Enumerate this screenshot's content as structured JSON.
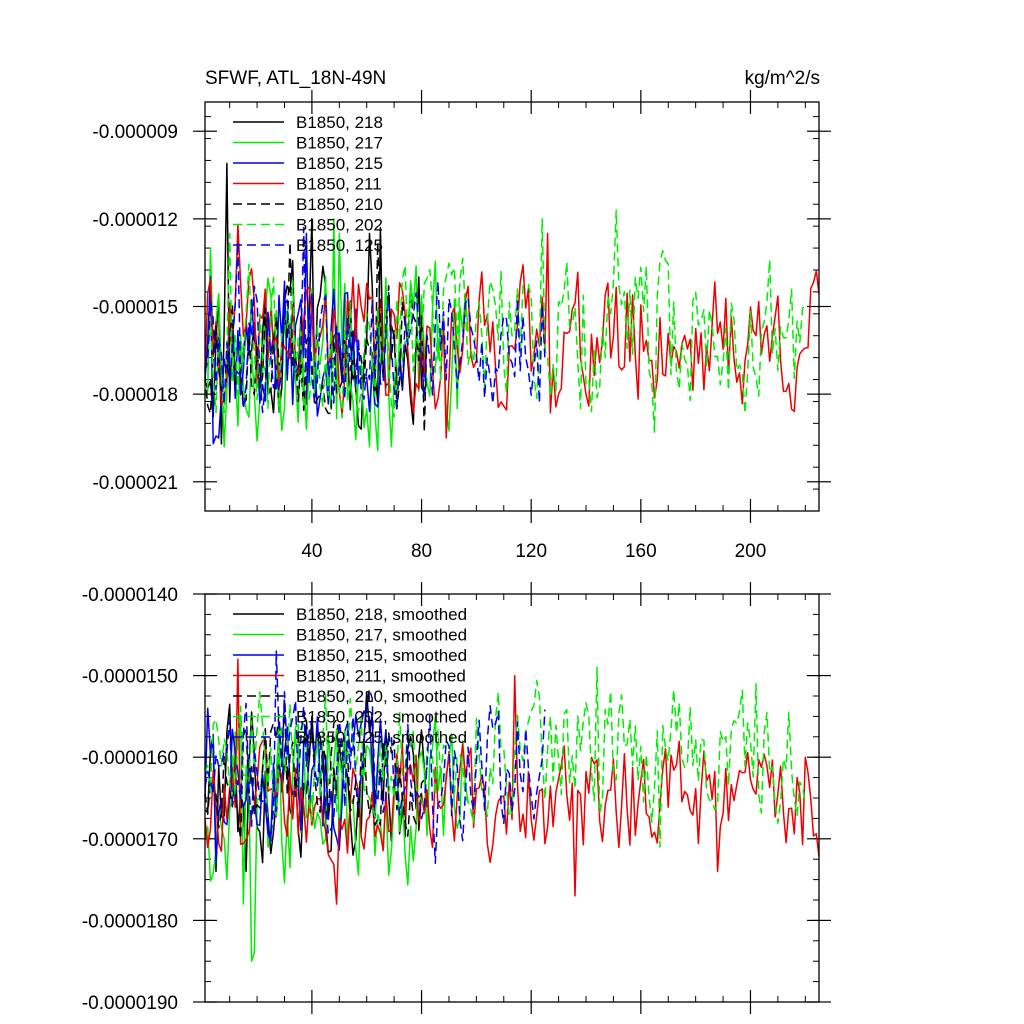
{
  "colors": {
    "black": "#000000",
    "green": "#00ee00",
    "blue": "#0000ee",
    "red": "#ee0000"
  },
  "chart_data": [
    {
      "type": "line",
      "title_left": "SFWF, ATL_18N-49N",
      "title_right": "kg/m^2/s",
      "xlabel": "",
      "ylabel": "",
      "xlim": [
        1,
        225
      ],
      "ylim": [
        -2.2e-05,
        -8e-06
      ],
      "x_ticks": [
        40,
        80,
        120,
        160,
        200
      ],
      "x_tick_labels": [
        "40",
        "80",
        "120",
        "160",
        "200"
      ],
      "y_ticks": [
        -9e-06,
        -1.2e-05,
        -1.5e-05,
        -1.8e-05,
        -2.1e-05
      ],
      "y_tick_labels": [
        "-0.000009",
        "-0.000012",
        "-0.000015",
        "-0.000018",
        "-0.000021"
      ],
      "grid": false,
      "legend_position": "top-left",
      "series": [
        {
          "name": "B1850, 218",
          "color": "black",
          "dash": "solid",
          "length": 82,
          "base": -1.63e-05,
          "amp": 2.4e-06,
          "seed": 11,
          "spikes": [
            [
              9,
              -1.01e-05
            ],
            [
              7,
              -1.97e-05
            ],
            [
              40,
              -1.2e-05
            ],
            [
              61,
              -1.25e-05
            ],
            [
              65,
              -1.23e-05
            ],
            [
              58,
              -1.92e-05
            ]
          ]
        },
        {
          "name": "B1850, 217",
          "color": "green",
          "dash": "solid",
          "length": 97,
          "base": -1.67e-05,
          "amp": 2.7e-06,
          "seed": 23,
          "spikes": [
            [
              8,
              -1.98e-05
            ],
            [
              20,
              -1.96e-05
            ],
            [
              48,
              -1.2e-05
            ],
            [
              50,
              -1.25e-05
            ],
            [
              3,
              -1.3e-05
            ]
          ]
        },
        {
          "name": "B1850, 215",
          "color": "blue",
          "dash": "solid",
          "length": 67,
          "base": -1.64e-05,
          "amp": 2.3e-06,
          "seed": 37,
          "spikes": [
            [
              4,
              -1.97e-05
            ],
            [
              6,
              -1.95e-05
            ],
            [
              38,
              -1.25e-05
            ],
            [
              3,
              -1.4e-05
            ]
          ]
        },
        {
          "name": "B1850, 211",
          "color": "red",
          "dash": "solid",
          "length": 225,
          "base": -1.62e-05,
          "amp": 2e-06,
          "seed": 41,
          "spikes": [
            [
              89,
              -1.95e-05
            ],
            [
              13,
              -1.22e-05
            ],
            [
              126,
              -1.25e-05
            ],
            [
              55,
              -1.4e-05
            ]
          ]
        },
        {
          "name": "B1850, 210",
          "color": "black",
          "dash": "dashed",
          "length": 82,
          "base": -1.64e-05,
          "amp": 2e-06,
          "seed": 53,
          "spikes": [
            [
              81,
              -1.93e-05
            ],
            [
              32,
              -1.28e-05
            ],
            [
              64,
              -1.28e-05
            ],
            [
              71,
              -1.85e-05
            ]
          ]
        },
        {
          "name": "B1850, 202",
          "color": "green",
          "dash": "dashed",
          "length": 220,
          "base": -1.6e-05,
          "amp": 2.3e-06,
          "seed": 67,
          "spikes": [
            [
              151,
              -1.17e-05
            ],
            [
              165,
              -1.93e-05
            ],
            [
              124,
              -1.2e-05
            ],
            [
              10,
              -1.25e-05
            ]
          ]
        },
        {
          "name": "B1850, 125",
          "color": "blue",
          "dash": "dashed",
          "length": 125,
          "base": -1.63e-05,
          "amp": 2e-06,
          "seed": 79,
          "spikes": [
            [
              37,
              -1.23e-05
            ],
            [
              13,
              -1.28e-05
            ],
            [
              123,
              -1.83e-05
            ]
          ]
        }
      ]
    },
    {
      "type": "line",
      "title_left": "",
      "title_right": "",
      "xlabel": "",
      "ylabel": "",
      "xlim": [
        1,
        225
      ],
      "ylim": [
        -1.9e-05,
        -1.4e-05
      ],
      "x_ticks": [
        40,
        80,
        120,
        160,
        200
      ],
      "x_tick_labels": [],
      "y_ticks": [
        -1.4e-05,
        -1.5e-05,
        -1.6e-05,
        -1.7e-05,
        -1.8e-05,
        -1.9e-05
      ],
      "y_tick_labels": [
        "-0.0000140",
        "-0.0000150",
        "-0.0000160",
        "-0.0000170",
        "-0.0000180",
        "-0.0000190"
      ],
      "grid": false,
      "legend_position": "top-left",
      "series": [
        {
          "name": "B1850, 218, smoothed",
          "color": "black",
          "dash": "solid",
          "length": 82,
          "base": -1.63e-05,
          "amp": 8e-07,
          "seed": 111,
          "spikes": [
            [
              5,
              -1.74e-05
            ],
            [
              16,
              -1.74e-05
            ],
            [
              40,
              -1.55e-05
            ],
            [
              60,
              -1.52e-05
            ]
          ]
        },
        {
          "name": "B1850, 217, smoothed",
          "color": "green",
          "dash": "solid",
          "length": 97,
          "base": -1.66e-05,
          "amp": 9e-07,
          "seed": 123,
          "spikes": [
            [
              18,
              -1.85e-05
            ],
            [
              19,
              -1.84e-05
            ],
            [
              15,
              -1.78e-05
            ],
            [
              46,
              -1.57e-05
            ]
          ]
        },
        {
          "name": "B1850, 215, smoothed",
          "color": "blue",
          "dash": "solid",
          "length": 67,
          "base": -1.62e-05,
          "amp": 7e-07,
          "seed": 137,
          "spikes": [
            [
              5,
              -1.73e-05
            ],
            [
              2,
              -1.54e-05
            ],
            [
              60,
              -1.55e-05
            ]
          ]
        },
        {
          "name": "B1850, 211, smoothed",
          "color": "red",
          "dash": "solid",
          "length": 225,
          "base": -1.65e-05,
          "amp": 6e-07,
          "seed": 141,
          "spikes": [
            [
              13,
              -1.48e-05
            ],
            [
              49,
              -1.78e-05
            ],
            [
              114,
              -1.5e-05
            ],
            [
              136,
              -1.77e-05
            ],
            [
              188,
              -1.74e-05
            ],
            [
              220,
              -1.6e-05
            ]
          ]
        },
        {
          "name": "B1850, 210, smoothed",
          "color": "black",
          "dash": "dashed",
          "length": 82,
          "base": -1.62e-05,
          "amp": 6e-07,
          "seed": 153,
          "spikes": [
            [
              30,
              -1.53e-05
            ],
            [
              14,
              -1.7e-05
            ]
          ]
        },
        {
          "name": "B1850, 202, smoothed",
          "color": "green",
          "dash": "dashed",
          "length": 220,
          "base": -1.59e-05,
          "amp": 7e-07,
          "seed": 167,
          "spikes": [
            [
              144,
              -1.49e-05
            ],
            [
              202,
              -1.51e-05
            ],
            [
              167,
              -1.71e-05
            ],
            [
              118,
              -1.57e-05
            ]
          ]
        },
        {
          "name": "B1850, 125, smoothed",
          "color": "blue",
          "dash": "dashed",
          "length": 125,
          "base": -1.61e-05,
          "amp": 7e-07,
          "seed": 179,
          "spikes": [
            [
              27,
              -1.47e-05
            ],
            [
              85,
              -1.73e-05
            ],
            [
              30,
              -1.52e-05
            ]
          ]
        }
      ]
    }
  ]
}
